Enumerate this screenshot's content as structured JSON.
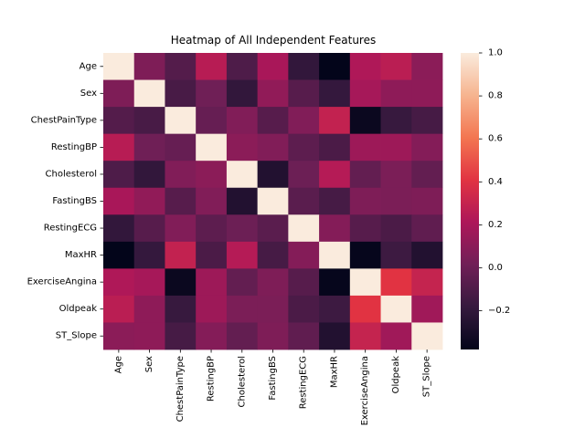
{
  "chart_data": {
    "type": "heatmap",
    "title": "Heatmap of All Independent Features",
    "features": [
      "Age",
      "Sex",
      "ChestPainType",
      "RestingBP",
      "Cholesterol",
      "FastingBS",
      "RestingECG",
      "MaxHR",
      "ExerciseAngina",
      "Oldpeak",
      "ST_Slope"
    ],
    "matrix": [
      [
        1.0,
        0.06,
        -0.08,
        0.25,
        -0.1,
        0.2,
        -0.2,
        -0.38,
        0.22,
        0.26,
        0.1
      ],
      [
        0.06,
        1.0,
        -0.12,
        0.01,
        -0.2,
        0.12,
        -0.07,
        -0.19,
        0.19,
        0.11,
        0.11
      ],
      [
        -0.08,
        -0.12,
        1.0,
        -0.02,
        0.07,
        -0.07,
        0.07,
        0.29,
        -0.35,
        -0.18,
        -0.13
      ],
      [
        0.25,
        0.01,
        -0.02,
        1.0,
        0.1,
        0.07,
        -0.05,
        -0.11,
        0.16,
        0.16,
        0.08
      ],
      [
        -0.1,
        -0.2,
        0.07,
        0.1,
        1.0,
        -0.26,
        0.0,
        0.24,
        -0.03,
        0.05,
        -0.03
      ],
      [
        0.2,
        0.12,
        -0.07,
        0.07,
        -0.26,
        1.0,
        -0.06,
        -0.13,
        0.06,
        0.05,
        0.06
      ],
      [
        -0.2,
        -0.07,
        0.07,
        -0.05,
        0.0,
        -0.06,
        1.0,
        0.08,
        -0.07,
        -0.11,
        -0.04
      ],
      [
        -0.38,
        -0.19,
        0.29,
        -0.11,
        0.24,
        -0.13,
        0.08,
        1.0,
        -0.37,
        -0.16,
        -0.26
      ],
      [
        0.22,
        0.19,
        -0.35,
        0.16,
        -0.03,
        0.06,
        -0.07,
        -0.37,
        1.0,
        0.41,
        0.3
      ],
      [
        0.26,
        0.11,
        -0.18,
        0.16,
        0.05,
        0.05,
        -0.11,
        -0.16,
        0.41,
        1.0,
        0.17
      ],
      [
        0.1,
        0.11,
        -0.13,
        0.08,
        -0.03,
        0.06,
        -0.04,
        -0.26,
        0.3,
        0.17,
        1.0
      ]
    ],
    "vmin": -0.38,
    "vmax": 1.0,
    "colorbar_ticks": [
      -0.2,
      0.0,
      0.2,
      0.4,
      0.6,
      0.8,
      1.0
    ],
    "colorbar_tick_labels": [
      "−0.2",
      "0.0",
      "0.2",
      "0.4",
      "0.6",
      "0.8",
      "1.0"
    ],
    "colormap": [
      "#03051a",
      "#36193e",
      "#701f57",
      "#ad1759",
      "#e13342",
      "#f37651",
      "#f6b48f",
      "#faebdd"
    ],
    "legend_position": "right",
    "grid": false
  }
}
